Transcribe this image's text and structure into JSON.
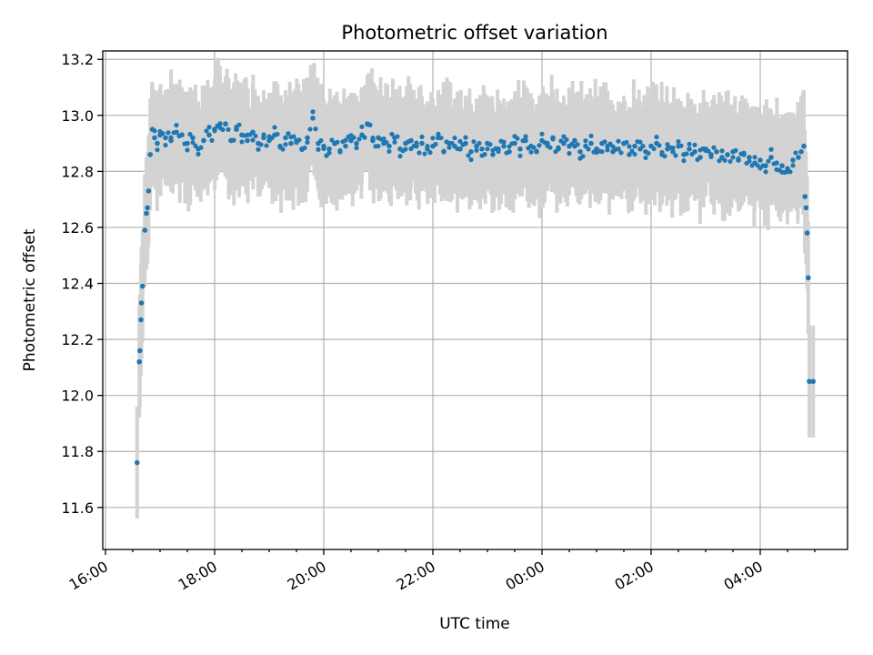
{
  "chart_data": {
    "type": "scatter",
    "title": "Photometric offset variation",
    "xlabel": "UTC time",
    "ylabel": "Photometric offset",
    "grid": true,
    "legend": "none",
    "x_unit": "hours since 16:00 UTC",
    "xlim": [
      -0.05,
      13.6
    ],
    "ylim": [
      11.45,
      13.23
    ],
    "x_ticks": [
      {
        "value": 0,
        "label": "16:00"
      },
      {
        "value": 2,
        "label": "18:00"
      },
      {
        "value": 4,
        "label": "20:00"
      },
      {
        "value": 6,
        "label": "22:00"
      },
      {
        "value": 8,
        "label": "00:00"
      },
      {
        "value": 10,
        "label": "02:00"
      },
      {
        "value": 12,
        "label": "04:00"
      }
    ],
    "y_ticks": [
      {
        "value": 11.6,
        "label": "11.6"
      },
      {
        "value": 11.8,
        "label": "11.8"
      },
      {
        "value": 12.0,
        "label": "12.0"
      },
      {
        "value": 12.2,
        "label": "12.2"
      },
      {
        "value": 12.4,
        "label": "12.4"
      },
      {
        "value": 12.6,
        "label": "12.6"
      },
      {
        "value": 12.8,
        "label": "12.8"
      },
      {
        "value": 13.0,
        "label": "13.0"
      },
      {
        "value": 13.2,
        "label": "13.2"
      }
    ],
    "colors": {
      "points": "#1f77b4",
      "errorbars": "#d3d3d3",
      "grid": "#b0b0b0"
    },
    "error_half_width_typical": 0.17,
    "series": [
      {
        "x": [
          0.58,
          0.62,
          0.63,
          0.65,
          0.66,
          0.68,
          0.72,
          0.75,
          0.77,
          0.79,
          0.82,
          0.86,
          0.9,
          0.95,
          1.0,
          1.1,
          1.2,
          1.3,
          1.4,
          1.5,
          1.6,
          1.7,
          1.8,
          1.9,
          2.0,
          2.1,
          2.2,
          2.3,
          2.4,
          2.5,
          2.6,
          2.7,
          2.8,
          2.9,
          3.0,
          3.1,
          3.2,
          3.3,
          3.4,
          3.5,
          3.6,
          3.7,
          3.8,
          3.9,
          4.0,
          4.1,
          4.2,
          4.3,
          4.4,
          4.5,
          4.6,
          4.7,
          4.8,
          4.9,
          5.0,
          5.1,
          5.2,
          5.3,
          5.4,
          5.5,
          5.6,
          5.7,
          5.8,
          5.9,
          6.0,
          6.1,
          6.2,
          6.3,
          6.4,
          6.5,
          6.6,
          6.7,
          6.8,
          6.9,
          7.0,
          7.1,
          7.2,
          7.3,
          7.4,
          7.5,
          7.6,
          7.7,
          7.8,
          7.9,
          8.0,
          8.1,
          8.2,
          8.3,
          8.4,
          8.5,
          8.6,
          8.7,
          8.8,
          8.9,
          9.0,
          9.1,
          9.2,
          9.3,
          9.4,
          9.5,
          9.6,
          9.7,
          9.8,
          9.9,
          10.0,
          10.1,
          10.2,
          10.3,
          10.4,
          10.5,
          10.6,
          10.7,
          10.8,
          10.9,
          11.0,
          11.1,
          11.2,
          11.3,
          11.4,
          11.5,
          11.6,
          11.7,
          11.8,
          11.9,
          12.0,
          12.1,
          12.2,
          12.3,
          12.4,
          12.5,
          12.6,
          12.7,
          12.75,
          12.8,
          12.82,
          12.84,
          12.86,
          12.88,
          12.9,
          12.97
        ],
        "y": [
          11.76,
          12.12,
          12.16,
          12.27,
          12.33,
          12.39,
          12.59,
          12.65,
          12.67,
          12.73,
          12.86,
          12.95,
          12.92,
          12.9,
          12.93,
          12.92,
          12.91,
          12.94,
          12.93,
          12.9,
          12.92,
          12.88,
          12.91,
          12.93,
          12.95,
          12.97,
          12.97,
          12.91,
          12.95,
          12.93,
          12.91,
          12.94,
          12.9,
          12.92,
          12.91,
          12.93,
          12.89,
          12.92,
          12.9,
          12.91,
          12.88,
          12.92,
          12.99,
          12.9,
          12.89,
          12.88,
          12.9,
          12.87,
          12.89,
          12.91,
          12.9,
          12.93,
          12.97,
          12.91,
          12.92,
          12.9,
          12.89,
          12.92,
          12.88,
          12.9,
          12.91,
          12.89,
          12.9,
          12.88,
          12.89,
          12.92,
          12.87,
          12.9,
          12.89,
          12.88,
          12.9,
          12.87,
          12.89,
          12.88,
          12.9,
          12.86,
          12.88,
          12.89,
          12.87,
          12.9,
          12.88,
          12.91,
          12.89,
          12.87,
          12.91,
          12.9,
          12.92,
          12.88,
          12.9,
          12.89,
          12.91,
          12.87,
          12.89,
          12.9,
          12.88,
          12.9,
          12.89,
          12.87,
          12.88,
          12.9,
          12.86,
          12.89,
          12.88,
          12.87,
          12.89,
          12.9,
          12.86,
          12.88,
          12.87,
          12.89,
          12.86,
          12.88,
          12.87,
          12.85,
          12.88,
          12.86,
          12.87,
          12.85,
          12.86,
          12.87,
          12.84,
          12.86,
          12.85,
          12.83,
          12.84,
          12.82,
          12.85,
          12.83,
          12.82,
          12.81,
          12.84,
          12.85,
          12.87,
          12.89,
          12.71,
          12.67,
          12.58,
          12.42,
          12.05,
          12.05
        ]
      }
    ]
  }
}
